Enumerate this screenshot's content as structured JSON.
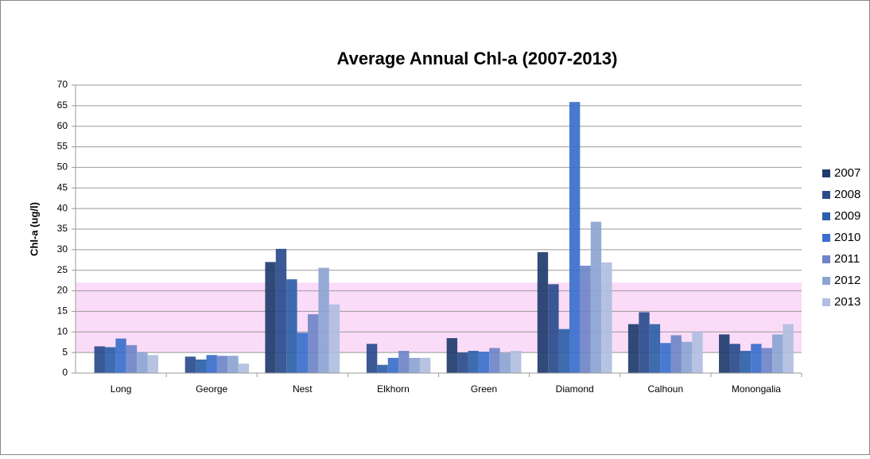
{
  "chart_data": {
    "type": "bar",
    "title": "Average Annual Chl-a (2007-2013)",
    "y_label": "Chl-a (ug/l)",
    "categories": [
      "Long",
      "George",
      "Nest",
      "Elkhorn",
      "Green",
      "Diamond",
      "Calhoun",
      "Monongalia"
    ],
    "series": [
      {
        "name": "2007",
        "color": "#1f3c6e",
        "values": [
          null,
          null,
          27.0,
          null,
          8.5,
          29.4,
          11.9,
          9.4
        ]
      },
      {
        "name": "2008",
        "color": "#2a4b8c",
        "values": [
          6.5,
          4.0,
          30.2,
          7.1,
          5.0,
          21.6,
          14.8,
          7.1
        ]
      },
      {
        "name": "2009",
        "color": "#2d5fa8",
        "values": [
          6.3,
          3.3,
          22.8,
          2.0,
          5.4,
          10.7,
          11.9,
          5.4
        ]
      },
      {
        "name": "2010",
        "color": "#3a6fcc",
        "values": [
          8.4,
          4.4,
          9.8,
          3.7,
          5.2,
          65.9,
          7.3,
          7.1
        ]
      },
      {
        "name": "2011",
        "color": "#6f84c8",
        "values": [
          6.8,
          4.2,
          14.3,
          5.4,
          6.1,
          26.1,
          9.2,
          6.1
        ]
      },
      {
        "name": "2012",
        "color": "#8ca4d2",
        "values": [
          5.1,
          4.2,
          25.6,
          3.7,
          4.9,
          36.8,
          7.6,
          9.4
        ]
      },
      {
        "name": "2013",
        "color": "#b0bedf",
        "values": [
          4.4,
          2.3,
          16.7,
          3.7,
          5.4,
          26.9,
          10.0,
          11.9
        ]
      }
    ],
    "ylim": [
      0,
      70
    ],
    "yticks": [
      0,
      5,
      10,
      15,
      20,
      25,
      30,
      35,
      40,
      45,
      50,
      55,
      60,
      65,
      70
    ],
    "grid": true,
    "shaded_range": [
      5,
      22
    ],
    "shaded_color": "#fbdcf8",
    "legend": "right"
  }
}
